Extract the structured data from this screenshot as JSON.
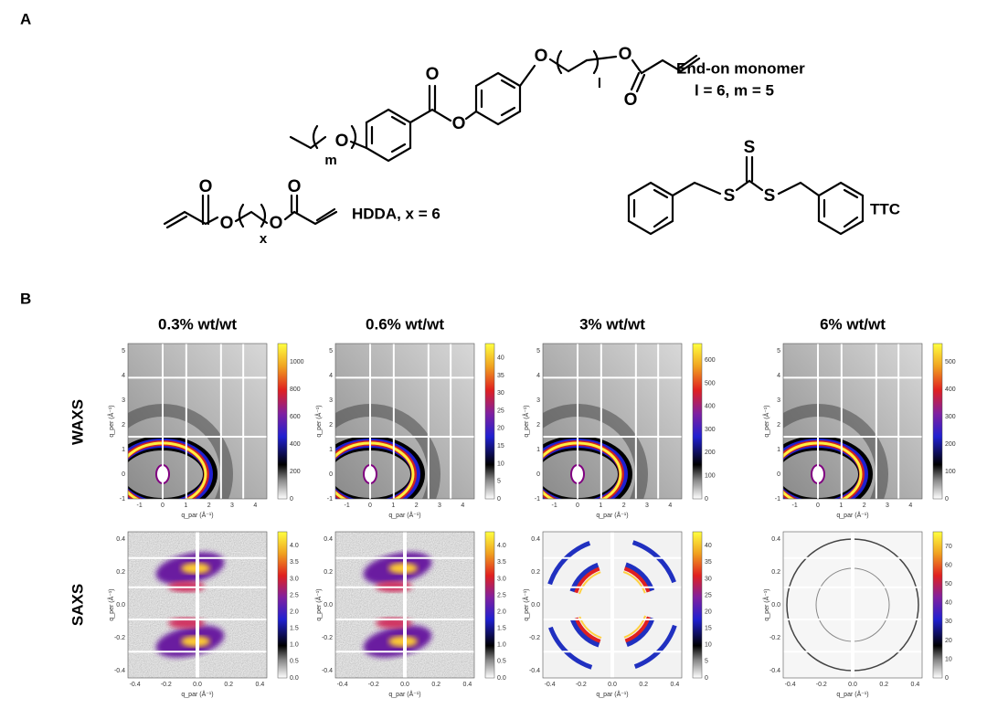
{
  "panel_a": {
    "label": "A",
    "end_on": {
      "name": "End-on monomer",
      "params": "l = 6, m = 5",
      "atoms": [
        "O",
        "O",
        "O",
        "O",
        "O",
        "O"
      ],
      "subscripts": [
        "m",
        "l"
      ]
    },
    "hdda": {
      "name": "HDDA, x = 6",
      "atoms": [
        "O",
        "O",
        "O",
        "O"
      ],
      "subscript": "x"
    },
    "ttc": {
      "name": "TTC",
      "atoms": [
        "S",
        "S",
        "S"
      ]
    }
  },
  "panel_b": {
    "label": "B",
    "rows": [
      "WAXS",
      "SAXS"
    ],
    "columns": [
      {
        "title": "0.3% wt/wt",
        "waxs_colorbar": [
          "0",
          "200",
          "400",
          "600",
          "800",
          "1000"
        ],
        "saxs_colorbar": [
          "0.0",
          "0.5",
          "1.0",
          "1.5",
          "2.0",
          "2.5",
          "3.0",
          "3.5",
          "4.0"
        ]
      },
      {
        "title": "0.6% wt/wt",
        "waxs_colorbar": [
          "0",
          "5",
          "10",
          "15",
          "20",
          "25",
          "30",
          "35",
          "40"
        ],
        "saxs_colorbar": [
          "0.0",
          "0.5",
          "1.0",
          "1.5",
          "2.0",
          "2.5",
          "3.0",
          "3.5",
          "4.0"
        ]
      },
      {
        "title": "3% wt/wt",
        "waxs_colorbar": [
          "0",
          "100",
          "200",
          "300",
          "400",
          "500",
          "600"
        ],
        "saxs_colorbar": [
          "0",
          "5",
          "10",
          "15",
          "20",
          "25",
          "30",
          "35",
          "40"
        ]
      },
      {
        "title": "6% wt/wt",
        "waxs_colorbar": [
          "0",
          "100",
          "200",
          "300",
          "400",
          "500"
        ],
        "saxs_colorbar": [
          "0",
          "10",
          "20",
          "30",
          "40",
          "50",
          "60",
          "70"
        ]
      }
    ],
    "waxs_axes": {
      "x_label": "q_par (Å⁻¹)",
      "y_label": "q_per (Å⁻¹)",
      "x_ticks": [
        "-1",
        "0",
        "1",
        "2",
        "3",
        "4"
      ],
      "y_ticks": [
        "-1",
        "0",
        "1",
        "2",
        "3",
        "4",
        "5"
      ]
    },
    "saxs_axes": {
      "x_label": "q_par (Å⁻¹)",
      "y_label": "q_per (Å⁻¹)",
      "x_ticks": [
        "-0.4",
        "-0.2",
        "0.0",
        "0.2",
        "0.4"
      ],
      "y_ticks": [
        "-0.4",
        "-0.2",
        "0.0",
        "0.2",
        "0.4"
      ]
    }
  }
}
